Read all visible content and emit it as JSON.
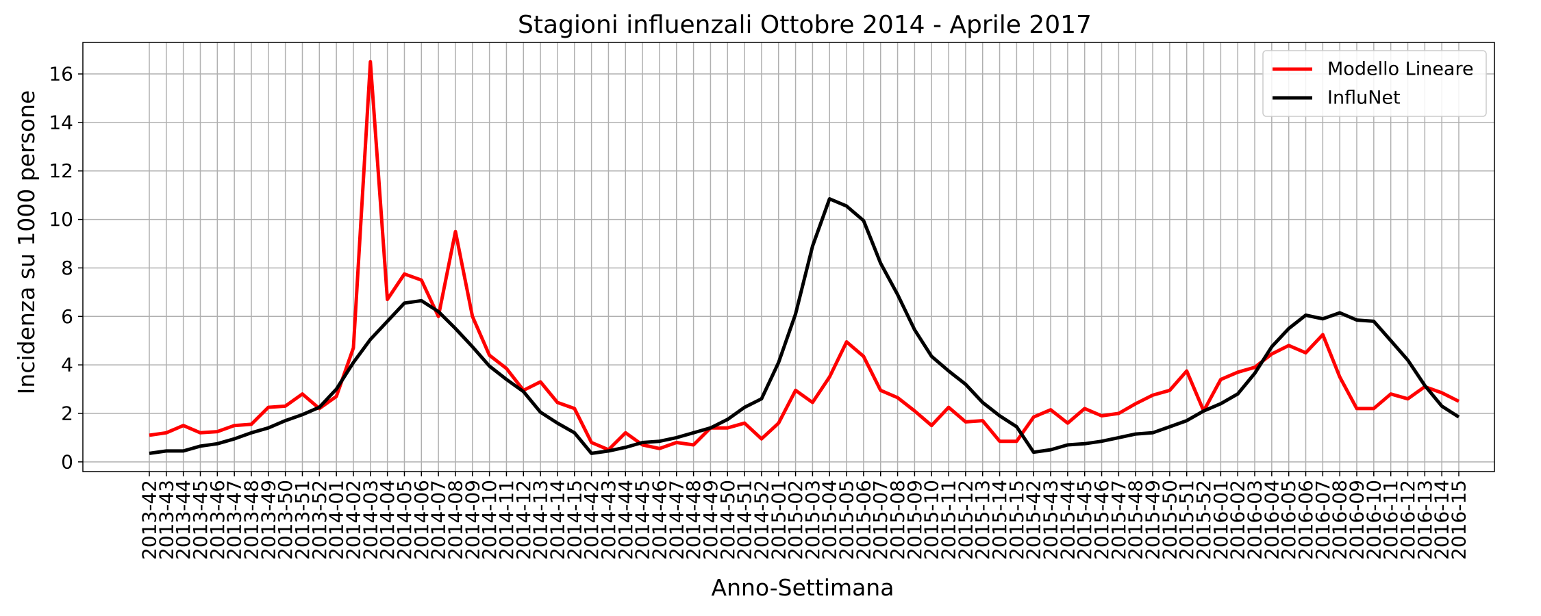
{
  "chart_data": {
    "type": "line",
    "title": "Stagioni influenzali Ottobre 2014 - Aprile 2017",
    "xlabel": "Anno-Settimana",
    "ylabel": "Incidenza su 1000 persone",
    "ylim": [
      -0.4,
      17.3
    ],
    "yticks": [
      0,
      2,
      4,
      6,
      8,
      10,
      12,
      14,
      16
    ],
    "grid": true,
    "legend_position": "top-right",
    "categories": [
      "2013-42",
      "2013-43",
      "2013-44",
      "2013-45",
      "2013-46",
      "2013-47",
      "2013-48",
      "2013-49",
      "2013-50",
      "2013-51",
      "2013-52",
      "2014-01",
      "2014-02",
      "2014-03",
      "2014-04",
      "2014-05",
      "2014-06",
      "2014-07",
      "2014-08",
      "2014-09",
      "2014-10",
      "2014-11",
      "2014-12",
      "2014-13",
      "2014-14",
      "2014-15",
      "2014-42",
      "2014-43",
      "2014-44",
      "2014-45",
      "2014-46",
      "2014-47",
      "2014-48",
      "2014-49",
      "2014-50",
      "2014-51",
      "2014-52",
      "2015-01",
      "2015-02",
      "2015-03",
      "2015-04",
      "2015-05",
      "2015-06",
      "2015-07",
      "2015-08",
      "2015-09",
      "2015-10",
      "2015-11",
      "2015-12",
      "2015-13",
      "2015-14",
      "2015-15",
      "2015-42",
      "2015-43",
      "2015-44",
      "2015-45",
      "2015-46",
      "2015-47",
      "2015-48",
      "2015-49",
      "2015-50",
      "2015-51",
      "2015-52",
      "2016-01",
      "2016-02",
      "2016-03",
      "2016-04",
      "2016-05",
      "2016-06",
      "2016-07",
      "2016-08",
      "2016-09",
      "2016-10",
      "2016-11",
      "2016-12",
      "2016-13",
      "2016-14",
      "2016-15"
    ],
    "series": [
      {
        "name": "Modello Lineare",
        "color": "#ff0000",
        "values": [
          1.1,
          1.2,
          1.5,
          1.2,
          1.25,
          1.5,
          1.55,
          2.25,
          2.3,
          2.8,
          2.2,
          2.7,
          4.7,
          16.5,
          6.7,
          7.75,
          7.5,
          6.0,
          9.5,
          6.0,
          4.4,
          3.85,
          2.95,
          3.3,
          2.45,
          2.2,
          0.8,
          0.5,
          1.2,
          0.7,
          0.55,
          0.8,
          0.7,
          1.4,
          1.4,
          1.6,
          0.95,
          1.6,
          2.95,
          2.45,
          3.5,
          4.95,
          4.35,
          2.95,
          2.65,
          2.1,
          1.5,
          2.25,
          1.65,
          1.7,
          0.85,
          0.85,
          1.85,
          2.15,
          1.6,
          2.2,
          1.9,
          2.0,
          2.4,
          2.75,
          2.95,
          3.75,
          2.1,
          3.4,
          3.7,
          3.9,
          4.45,
          4.8,
          4.5,
          5.25,
          3.5,
          2.2,
          2.2,
          2.8,
          2.6,
          3.1,
          2.85,
          2.5
        ]
      },
      {
        "name": "InfluNet",
        "color": "#000000",
        "values": [
          0.35,
          0.45,
          0.45,
          0.65,
          0.75,
          0.95,
          1.2,
          1.4,
          1.7,
          1.95,
          2.25,
          3.0,
          4.1,
          5.05,
          5.8,
          6.55,
          6.65,
          6.2,
          5.5,
          4.75,
          3.95,
          3.4,
          2.9,
          2.05,
          1.6,
          1.2,
          0.35,
          0.45,
          0.6,
          0.8,
          0.85,
          1.0,
          1.2,
          1.4,
          1.75,
          2.25,
          2.6,
          4.1,
          6.1,
          8.9,
          10.85,
          10.55,
          9.95,
          8.2,
          6.9,
          5.45,
          4.35,
          3.75,
          3.2,
          2.45,
          1.9,
          1.45,
          0.4,
          0.5,
          0.7,
          0.75,
          0.85,
          1.0,
          1.15,
          1.2,
          1.45,
          1.7,
          2.1,
          2.4,
          2.8,
          3.65,
          4.75,
          5.5,
          6.05,
          5.9,
          6.15,
          5.85,
          5.8,
          5.0,
          4.2,
          3.15,
          2.3,
          1.85
        ]
      }
    ]
  }
}
